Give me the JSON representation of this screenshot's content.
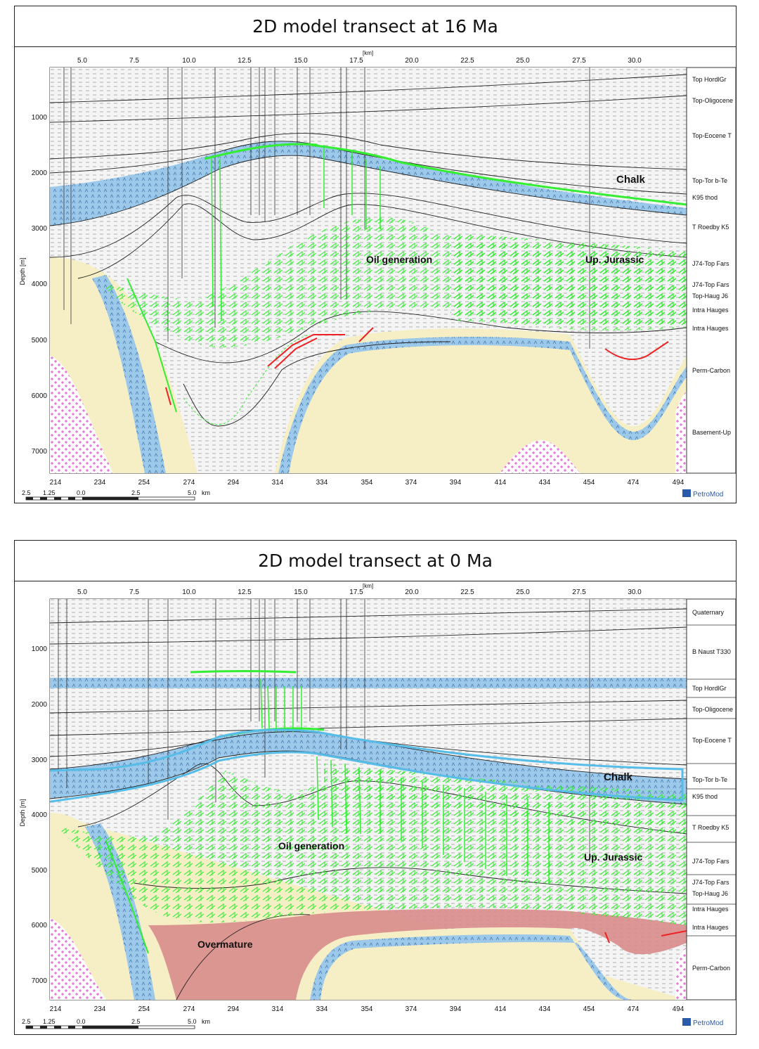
{
  "panels": [
    {
      "id": "p16",
      "title": "2D model transect at 16 Ma",
      "x_axis_label": "[km]",
      "y_axis_label": "Depth [m]",
      "top_ticks": [
        "5.0",
        "7.5",
        "10.0",
        "12.5",
        "15.0",
        "17.5",
        "20.0",
        "22.5",
        "25.0",
        "27.5",
        "30.0"
      ],
      "bottom_ticks": [
        "214",
        "234",
        "254",
        "274",
        "294",
        "314",
        "334",
        "354",
        "374",
        "394",
        "414",
        "434",
        "454",
        "474",
        "494"
      ],
      "depth_ticks": [
        "1000",
        "2000",
        "3000",
        "4000",
        "5000",
        "6000",
        "7000"
      ],
      "scale_bar": [
        "2.5",
        "1.25",
        "0.0",
        "2.5",
        "5.0",
        "km"
      ],
      "logo": "PetroMod",
      "layer_labels": [
        "Top HordlGr",
        "Top-Oligocene",
        "Top-Eocene T",
        "Top-Tor b-Te",
        "K95 thod",
        "T Roedby K5",
        "J74-Top Fars",
        "J74-Top Fars",
        "Top-Haug J6",
        "Intra Hauges",
        "Intra Hauges",
        "Perm-Carbon",
        "Basement-Up"
      ],
      "annotations": [
        "Chalk",
        "Oil generation",
        "Up. Jurassic"
      ]
    },
    {
      "id": "p0",
      "title": "2D model transect at 0 Ma",
      "x_axis_label": "[km]",
      "y_axis_label": "Depth [m]",
      "top_ticks": [
        "5.0",
        "7.5",
        "10.0",
        "12.5",
        "15.0",
        "17.5",
        "20.0",
        "22.5",
        "25.0",
        "27.5",
        "30.0"
      ],
      "bottom_ticks": [
        "214",
        "234",
        "254",
        "274",
        "294",
        "314",
        "334",
        "354",
        "374",
        "394",
        "414",
        "434",
        "454",
        "474",
        "494"
      ],
      "depth_ticks": [
        "1000",
        "2000",
        "3000",
        "4000",
        "5000",
        "6000",
        "7000"
      ],
      "scale_bar": [
        "2.5",
        "1.25",
        "0.0",
        "2.5",
        "5.0",
        "km"
      ],
      "logo": "PetroMod",
      "layer_labels": [
        "Quaternary",
        "B Naust T330",
        "Top HordlGr",
        "Top-Oligocene",
        "Top-Eocene T",
        "Top-Tor b-Te",
        "K95 thod",
        "T Roedby K5",
        "J74-Top Fars",
        "J74-Top Fars",
        "Top-Haug J6",
        "Intra Hauges",
        "Intra Hauges",
        "Perm-Carbon"
      ],
      "annotations": [
        "Chalk",
        "Oil generation",
        "Up. Jurassic",
        "Overmature"
      ]
    }
  ],
  "colors": {
    "chalk": "#9cc8ea",
    "sand": "#f6efc6",
    "basement": "#e85fd6",
    "migration": "#33ee33",
    "leakage": "#ee2222",
    "overmature": "#d98c8c",
    "outline": "#55bde8"
  }
}
